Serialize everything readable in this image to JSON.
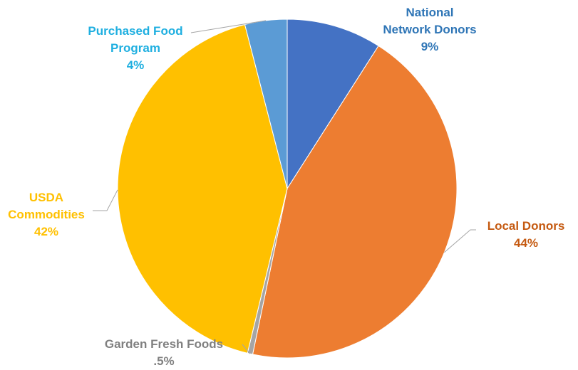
{
  "chart_data": {
    "type": "pie",
    "slices": [
      {
        "name": "National Network Donors",
        "label_lines": [
          "National",
          "Network Donors"
        ],
        "value": 9,
        "pct_label": "9%",
        "color": "#4472C4"
      },
      {
        "name": "Local Donors",
        "label_lines": [
          "Local Donors"
        ],
        "value": 44,
        "pct_label": "44%",
        "color": "#ED7D31"
      },
      {
        "name": "Garden Fresh Foods",
        "label_lines": [
          "Garden Fresh Foods"
        ],
        "value": 0.5,
        "pct_label": ".5%",
        "color": "#A5A5A5"
      },
      {
        "name": "USDA Commodities",
        "label_lines": [
          "USDA",
          "Commodities"
        ],
        "value": 42,
        "pct_label": "42%",
        "color": "#FFC000"
      },
      {
        "name": "Purchased Food Program",
        "label_lines": [
          "Purchased Food",
          "Program"
        ],
        "value": 4,
        "pct_label": "4%",
        "color": "#5B9BD5"
      }
    ],
    "start": "12 o'clock",
    "direction": "clockwise"
  }
}
